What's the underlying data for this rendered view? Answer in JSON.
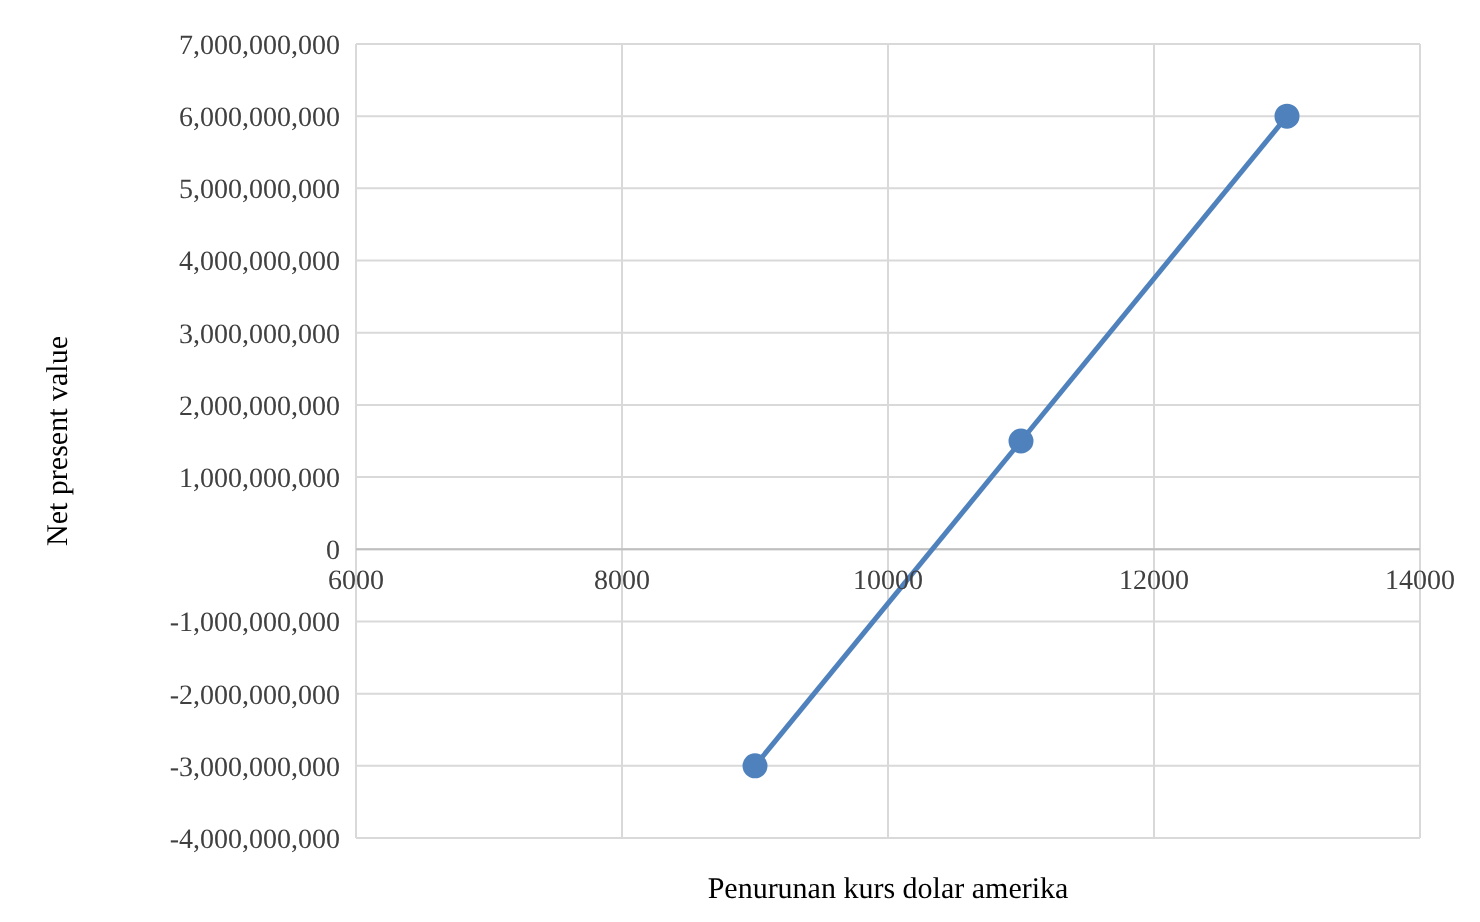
{
  "chart_data": {
    "type": "line",
    "xlabel": "Penurunan kurs  dolar amerika",
    "ylabel": "Net present value",
    "x": [
      9000,
      11000,
      13000
    ],
    "series": [
      {
        "color": "#4f81bd",
        "values": [
          -3000000000,
          1500000000,
          6000000000
        ]
      }
    ],
    "xlim": [
      6000,
      14000
    ],
    "xticks": [
      6000,
      8000,
      10000,
      12000,
      14000
    ],
    "ylim": [
      -4000000000,
      7000000000
    ],
    "yticks": [
      {
        "value": -4000000000,
        "label": "-4,000,000,000"
      },
      {
        "value": -3000000000,
        "label": "-3,000,000,000"
      },
      {
        "value": -2000000000,
        "label": "-2,000,000,000"
      },
      {
        "value": -1000000000,
        "label": "-1,000,000,000"
      },
      0,
      {
        "value": 1000000000,
        "label": "1,000,000,000"
      },
      {
        "value": 2000000000,
        "label": "2,000,000,000"
      },
      {
        "value": 3000000000,
        "label": "3,000,000,000"
      },
      {
        "value": 4000000000,
        "label": "4,000,000,000"
      },
      {
        "value": 5000000000,
        "label": "5,000,000,000"
      },
      {
        "value": 6000000000,
        "label": "6,000,000,000"
      },
      {
        "value": 7000000000,
        "label": "7,000,000,000"
      }
    ],
    "grid": true,
    "marker": "circle",
    "line_style": "solid"
  }
}
